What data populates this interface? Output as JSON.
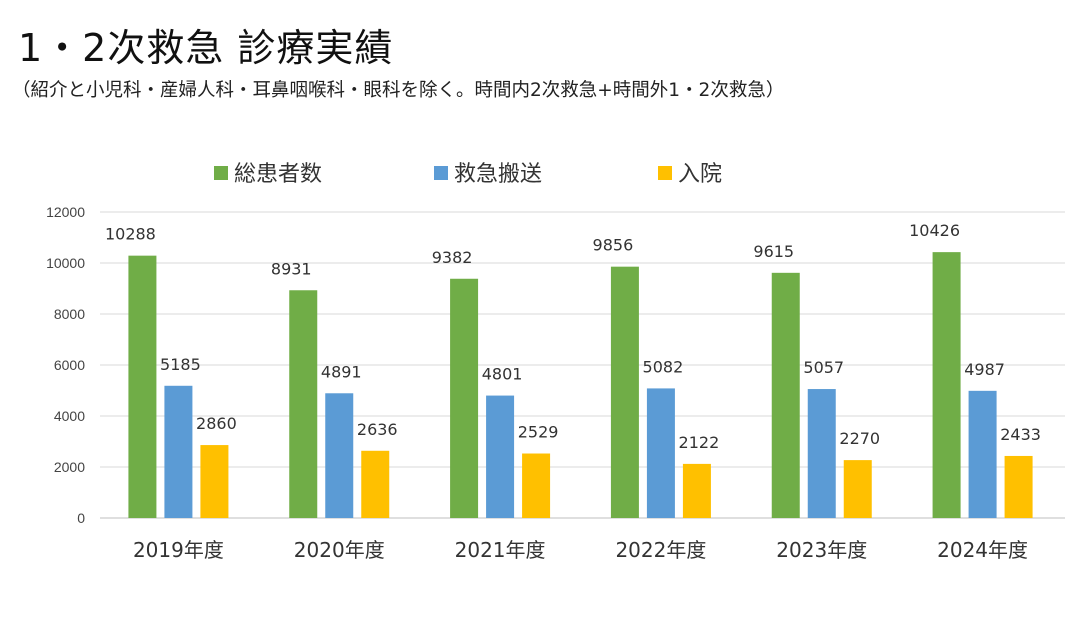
{
  "header": {
    "title": "1・2次救急 診療実績",
    "subtitle": "（紹介と小児科・産婦人科・耳鼻咽喉科・眼科を除く。時間内2次救急+時間外1・2次救急）"
  },
  "colors": {
    "total_patients": "#70AD47",
    "ambulance": "#5B9BD5",
    "admission": "#FFC000",
    "gridline": "#D9D9D9",
    "axis": "#BFBFBF"
  },
  "chart_data": {
    "type": "bar",
    "title": "",
    "xlabel": "",
    "ylabel": "",
    "categories": [
      "2019年度",
      "2020年度",
      "2021年度",
      "2022年度",
      "2023年度",
      "2024年度"
    ],
    "ylim": [
      0,
      12000
    ],
    "yticks": [
      0,
      2000,
      4000,
      6000,
      8000,
      10000,
      12000
    ],
    "grid": true,
    "legend_position": "top",
    "series": [
      {
        "name": "総患者数",
        "color": "#70AD47",
        "values": [
          10288,
          8931,
          9382,
          9856,
          9615,
          10426
        ]
      },
      {
        "name": "救急搬送",
        "color": "#5B9BD5",
        "values": [
          5185,
          4891,
          4801,
          5082,
          5057,
          4987
        ]
      },
      {
        "name": "入院",
        "color": "#FFC000",
        "values": [
          2860,
          2636,
          2529,
          2122,
          2270,
          2433
        ]
      }
    ]
  }
}
